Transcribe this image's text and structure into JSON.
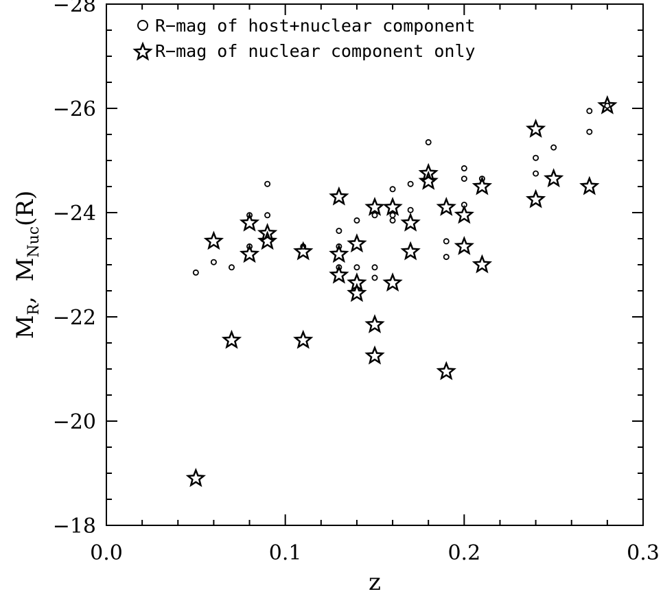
{
  "chart_data": {
    "type": "scatter",
    "xlabel": "z",
    "ylabel_main": "M",
    "ylabel_sub1": "R",
    "ylabel_sep": ",  ",
    "ylabel_main2": "M",
    "ylabel_sub2": "Nuc",
    "ylabel_tail": "(R)",
    "xlim": [
      0.0,
      0.3
    ],
    "ylim": [
      -18,
      -28
    ],
    "inverted_y": true,
    "x_ticks": [
      {
        "value": 0.0,
        "label": "0.0"
      },
      {
        "value": 0.1,
        "label": "0.1"
      },
      {
        "value": 0.2,
        "label": "0.2"
      },
      {
        "value": 0.3,
        "label": "0.3"
      }
    ],
    "y_ticks": [
      {
        "value": -18,
        "label": "−18"
      },
      {
        "value": -20,
        "label": "−20"
      },
      {
        "value": -22,
        "label": "−22"
      },
      {
        "value": -24,
        "label": "−24"
      },
      {
        "value": -26,
        "label": "−26"
      },
      {
        "value": -28,
        "label": "−28"
      }
    ],
    "x_minor_step": 0.02,
    "y_minor_step": 0.5,
    "legend_position": "top-left",
    "series": [
      {
        "name": "R−mag of host+nuclear component",
        "marker": "circle",
        "points": [
          [
            0.05,
            -22.85
          ],
          [
            0.06,
            -23.05
          ],
          [
            0.07,
            -22.95
          ],
          [
            0.08,
            -23.35
          ],
          [
            0.08,
            -23.95
          ],
          [
            0.09,
            -24.55
          ],
          [
            0.09,
            -23.95
          ],
          [
            0.11,
            -23.35
          ],
          [
            0.13,
            -23.65
          ],
          [
            0.13,
            -23.35
          ],
          [
            0.13,
            -22.95
          ],
          [
            0.14,
            -23.85
          ],
          [
            0.14,
            -22.95
          ],
          [
            0.15,
            -23.95
          ],
          [
            0.15,
            -22.95
          ],
          [
            0.15,
            -22.75
          ],
          [
            0.16,
            -24.45
          ],
          [
            0.16,
            -23.95
          ],
          [
            0.16,
            -23.85
          ],
          [
            0.17,
            -24.55
          ],
          [
            0.17,
            -24.05
          ],
          [
            0.18,
            -25.35
          ],
          [
            0.19,
            -23.45
          ],
          [
            0.19,
            -23.15
          ],
          [
            0.2,
            -24.85
          ],
          [
            0.2,
            -24.65
          ],
          [
            0.2,
            -24.15
          ],
          [
            0.21,
            -24.65
          ],
          [
            0.24,
            -25.05
          ],
          [
            0.24,
            -24.75
          ],
          [
            0.25,
            -25.25
          ],
          [
            0.27,
            -25.95
          ],
          [
            0.27,
            -25.55
          ],
          [
            0.28,
            -26.05
          ]
        ]
      },
      {
        "name": "R−mag of nuclear component only",
        "marker": "star",
        "points": [
          [
            0.05,
            -18.9
          ],
          [
            0.06,
            -23.45
          ],
          [
            0.07,
            -21.55
          ],
          [
            0.08,
            -23.8
          ],
          [
            0.08,
            -23.2
          ],
          [
            0.09,
            -23.6
          ],
          [
            0.09,
            -23.45
          ],
          [
            0.11,
            -23.25
          ],
          [
            0.11,
            -21.55
          ],
          [
            0.13,
            -24.3
          ],
          [
            0.13,
            -23.2
          ],
          [
            0.13,
            -22.8
          ],
          [
            0.14,
            -23.4
          ],
          [
            0.14,
            -22.65
          ],
          [
            0.14,
            -22.45
          ],
          [
            0.15,
            -24.1
          ],
          [
            0.15,
            -21.85
          ],
          [
            0.15,
            -21.25
          ],
          [
            0.16,
            -24.1
          ],
          [
            0.16,
            -22.65
          ],
          [
            0.17,
            -23.8
          ],
          [
            0.17,
            -23.25
          ],
          [
            0.18,
            -24.75
          ],
          [
            0.18,
            -24.6
          ],
          [
            0.19,
            -24.1
          ],
          [
            0.19,
            -20.95
          ],
          [
            0.2,
            -23.95
          ],
          [
            0.2,
            -23.35
          ],
          [
            0.21,
            -24.5
          ],
          [
            0.21,
            -23.0
          ],
          [
            0.24,
            -25.6
          ],
          [
            0.24,
            -24.25
          ],
          [
            0.25,
            -24.65
          ],
          [
            0.27,
            -24.5
          ],
          [
            0.28,
            -26.05
          ]
        ]
      }
    ]
  }
}
